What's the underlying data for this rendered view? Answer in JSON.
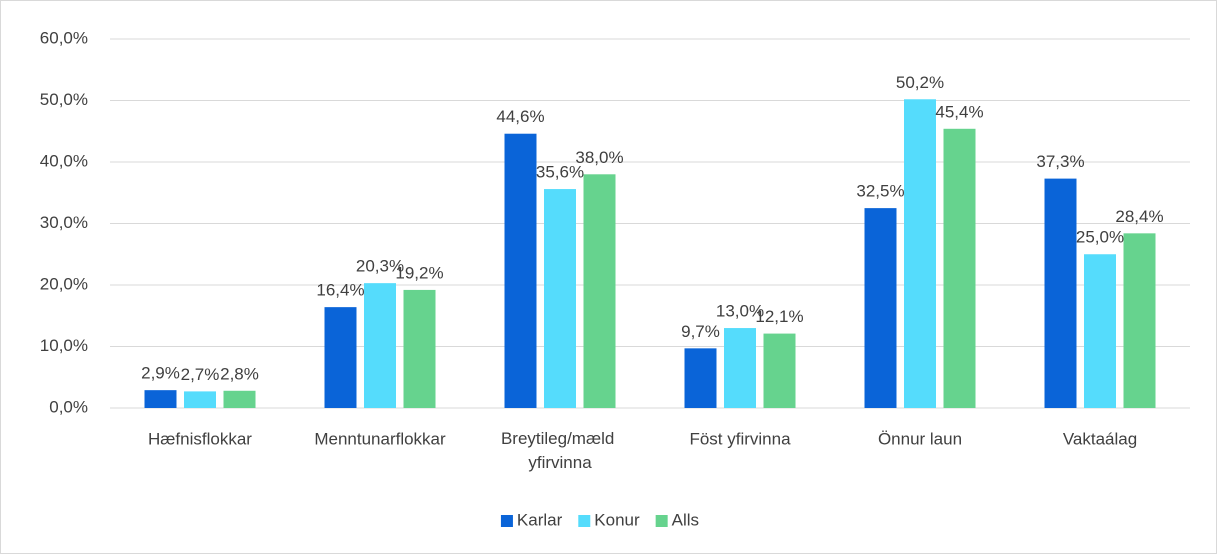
{
  "chart_data": {
    "type": "bar",
    "categories": [
      "Hæfnisflokkar",
      "Menntunarflokkar",
      "Breytileg/mæld yfirvinna",
      "Föst yfirvinna",
      "Önnur laun",
      "Vaktaálag"
    ],
    "series": [
      {
        "name": "Karlar",
        "color": "#0a64d8",
        "values": [
          2.9,
          16.4,
          44.6,
          9.7,
          32.5,
          37.3
        ],
        "value_labels": [
          "2,9%",
          "16,4%",
          "44,6%",
          "9,7%",
          "32,5%",
          "37,3%"
        ]
      },
      {
        "name": "Konur",
        "color": "#55dcfc",
        "values": [
          2.7,
          20.3,
          35.6,
          13.0,
          50.2,
          25.0
        ],
        "value_labels": [
          "2,7%",
          "20,3%",
          "35,6%",
          "13,0%",
          "50,2%",
          "25,0%"
        ]
      },
      {
        "name": "Alls",
        "color": "#66d38e",
        "values": [
          2.8,
          19.2,
          38.0,
          12.1,
          45.4,
          28.4
        ],
        "value_labels": [
          "2,8%",
          "19,2%",
          "38,0%",
          "12,1%",
          "45,4%",
          "28,4%"
        ]
      }
    ],
    "ylim": [
      0,
      60
    ],
    "yticks": [
      {
        "value": 0,
        "label": "0,0%"
      },
      {
        "value": 10,
        "label": "10,0%"
      },
      {
        "value": 20,
        "label": "20,0%"
      },
      {
        "value": 30,
        "label": "30,0%"
      },
      {
        "value": 40,
        "label": "40,0%"
      },
      {
        "value": 50,
        "label": "50,0%"
      },
      {
        "value": 60,
        "label": "60,0%"
      }
    ],
    "grid": true,
    "legend": "bottom"
  }
}
